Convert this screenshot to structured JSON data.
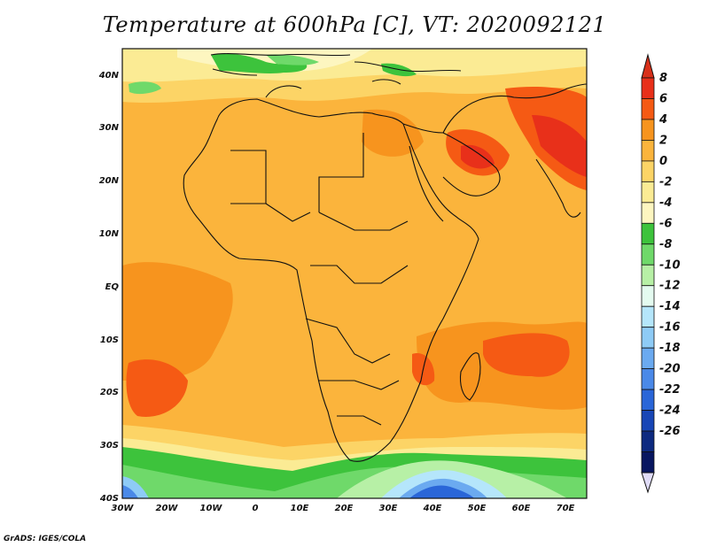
{
  "title": "Temperature at 600hPa [C], VT: 2020092121",
  "credit": "GrADS: IGES/COLA",
  "axes": {
    "lat_labels": [
      "40N",
      "30N",
      "20N",
      "10N",
      "EQ",
      "10S",
      "20S",
      "30S",
      "40S"
    ],
    "lon_labels": [
      "30W",
      "20W",
      "10W",
      "0",
      "10E",
      "20E",
      "30E",
      "40E",
      "50E",
      "60E",
      "70E"
    ]
  },
  "colorbar": {
    "levels": [
      "8",
      "6",
      "4",
      "2",
      "0",
      "-2",
      "-4",
      "-6",
      "-8",
      "-10",
      "-12",
      "-14",
      "-16",
      "-18",
      "-20",
      "-22",
      "-24",
      "-26"
    ],
    "colors": [
      "#e8301a",
      "#f55a14",
      "#f7941e",
      "#fbb43c",
      "#fcd466",
      "#fbeb94",
      "#fdf6c0",
      "#3dc33c",
      "#6fd96a",
      "#b7f0a6",
      "#e4fbf0",
      "#b5e6fb",
      "#8ecbf6",
      "#6baaf0",
      "#4a89e8",
      "#2a66d8",
      "#1846b6",
      "#0e2a80",
      "#081660"
    ],
    "top_color": "#d8301a",
    "bottom_color": "#e0dcf8"
  }
}
